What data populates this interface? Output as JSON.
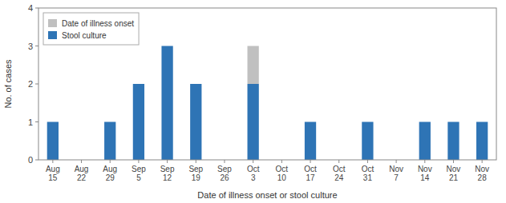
{
  "chart_data": {
    "type": "bar",
    "stacked": true,
    "xlabel": "Date of illness onset or stool culture",
    "ylabel": "No. of cases",
    "categories": [
      "Aug\n15",
      "Aug\n22",
      "Aug\n29",
      "Sep\n5",
      "Sep\n12",
      "Sep\n19",
      "Sep\n26",
      "Oct\n3",
      "Oct\n10",
      "Oct\n17",
      "Oct\n24",
      "Oct\n31",
      "Nov\n7",
      "Nov\n14",
      "Nov\n21",
      "Nov\n28"
    ],
    "series": [
      {
        "name": "Stool culture",
        "color": "#2E74B5",
        "values": [
          1,
          0,
          1,
          2,
          3,
          2,
          0,
          2,
          0,
          1,
          0,
          1,
          0,
          1,
          1,
          1
        ]
      },
      {
        "name": "Date of illness onset",
        "color": "#C0C0C0",
        "values": [
          0,
          0,
          0,
          0,
          0,
          0,
          0,
          1,
          0,
          0,
          0,
          0,
          0,
          0,
          0,
          0
        ]
      }
    ],
    "ylim": [
      0,
      4
    ],
    "yticks": [
      0,
      1,
      2,
      3,
      4
    ],
    "grid": false,
    "legend": "upper left"
  }
}
